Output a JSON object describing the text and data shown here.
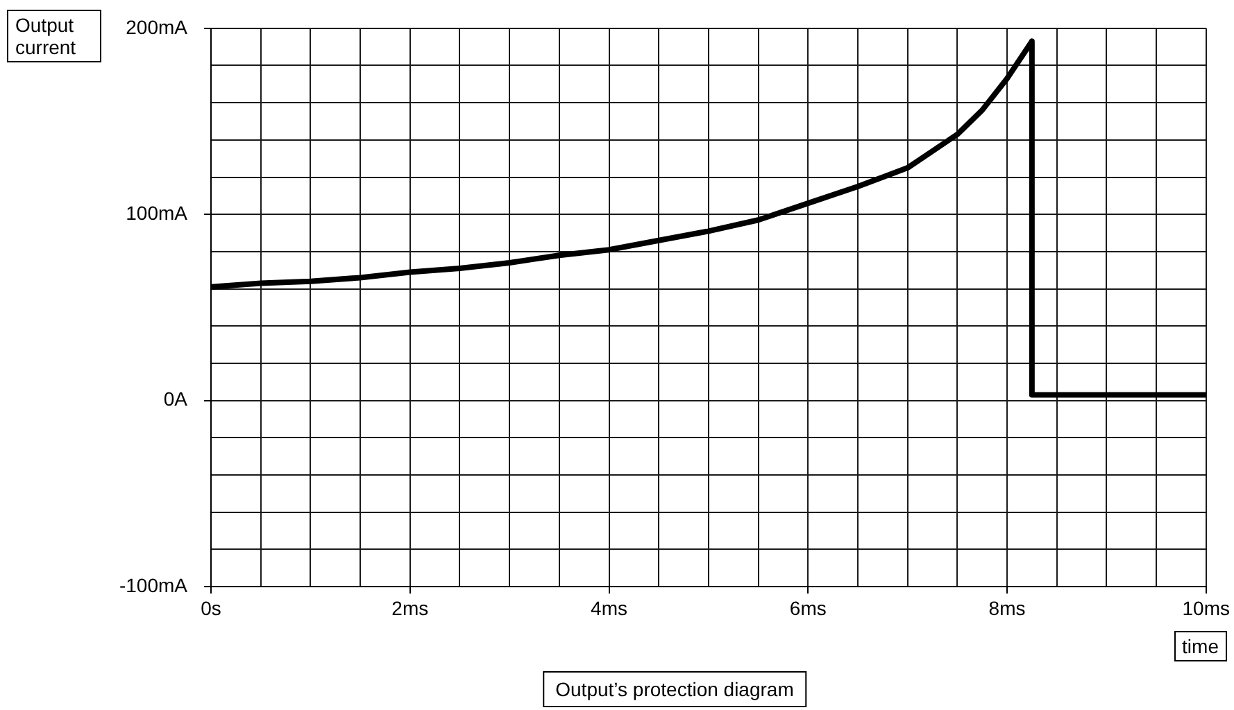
{
  "chart_data": {
    "type": "line",
    "title": "Output’s protection diagram",
    "xlabel": "time",
    "ylabel": "Output current",
    "x": [
      0,
      0.5,
      1,
      1.5,
      2,
      2.5,
      3,
      3.5,
      4,
      4.5,
      5,
      5.5,
      6,
      6.5,
      7,
      7.25,
      7.5,
      7.75,
      8,
      8.25,
      8.25,
      10
    ],
    "values": [
      61,
      63,
      64,
      66,
      69,
      71,
      74,
      78,
      81,
      86,
      91,
      97,
      106,
      115,
      125,
      134,
      143,
      156,
      173,
      193,
      3,
      3
    ],
    "color": "#000000",
    "marker": "none",
    "line_style": "solid",
    "grid": true,
    "xlim": [
      0,
      10
    ],
    "xticks": [
      {
        "value": 0,
        "label": "0s"
      },
      {
        "value": 0.5,
        "label": null
      },
      {
        "value": 1,
        "label": null
      },
      {
        "value": 1.5,
        "label": null
      },
      {
        "value": 2,
        "label": "2ms"
      },
      {
        "value": 2.5,
        "label": null
      },
      {
        "value": 3,
        "label": null
      },
      {
        "value": 3.5,
        "label": null
      },
      {
        "value": 4,
        "label": "4ms"
      },
      {
        "value": 4.5,
        "label": null
      },
      {
        "value": 5,
        "label": null
      },
      {
        "value": 5.5,
        "label": null
      },
      {
        "value": 6,
        "label": "6ms"
      },
      {
        "value": 6.5,
        "label": null
      },
      {
        "value": 7,
        "label": null
      },
      {
        "value": 7.5,
        "label": null
      },
      {
        "value": 8,
        "label": "8ms"
      },
      {
        "value": 8.5,
        "label": null
      },
      {
        "value": 9,
        "label": null
      },
      {
        "value": 9.5,
        "label": null
      },
      {
        "value": 10,
        "label": "10ms"
      }
    ],
    "ylim": [
      -100,
      200
    ],
    "yticks": [
      {
        "value": -100,
        "label": "-100mA"
      },
      {
        "value": -80,
        "label": null
      },
      {
        "value": -60,
        "label": null
      },
      {
        "value": -40,
        "label": null
      },
      {
        "value": -20,
        "label": null
      },
      {
        "value": 0,
        "label": "0A"
      },
      {
        "value": 20,
        "label": null
      },
      {
        "value": 40,
        "label": null
      },
      {
        "value": 60,
        "label": null
      },
      {
        "value": 80,
        "label": null
      },
      {
        "value": 100,
        "label": "100mA"
      },
      {
        "value": 120,
        "label": null
      },
      {
        "value": 140,
        "label": null
      },
      {
        "value": 160,
        "label": null
      },
      {
        "value": 180,
        "label": null
      },
      {
        "value": 200,
        "label": "200mA"
      }
    ]
  }
}
